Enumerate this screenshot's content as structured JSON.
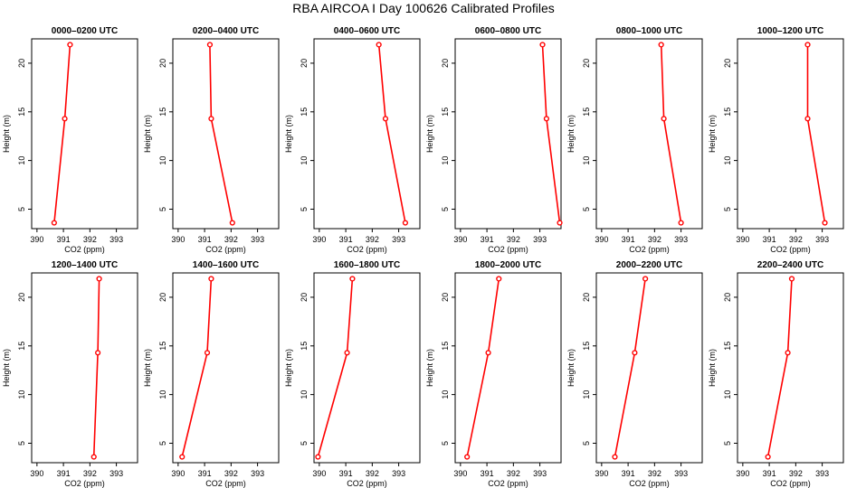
{
  "page": {
    "title": "RBA AIRCOA I  Day 100626  Calibrated Profiles"
  },
  "colors": {
    "series": "#ff0000",
    "axis": "#000000",
    "background": "#ffffff"
  },
  "chart_data": [
    {
      "type": "line",
      "title": "0000–0200 UTC",
      "xlabel": "CO2 (ppm)",
      "ylabel": "Height (m)",
      "xlim": [
        389.8,
        393.8
      ],
      "ylim": [
        3,
        22.5
      ],
      "xticks": [
        390,
        391,
        392,
        393
      ],
      "yticks": [
        5,
        10,
        15,
        20
      ],
      "points": [
        {
          "x": 391.25,
          "y": 21.9
        },
        {
          "x": 391.05,
          "y": 14.3
        },
        {
          "x": 390.65,
          "y": 3.6
        }
      ]
    },
    {
      "type": "line",
      "title": "0200–0400 UTC",
      "xlabel": "CO2 (ppm)",
      "ylabel": "Height (m)",
      "xlim": [
        389.8,
        393.8
      ],
      "ylim": [
        3,
        22.5
      ],
      "xticks": [
        390,
        391,
        392,
        393
      ],
      "yticks": [
        5,
        10,
        15,
        20
      ],
      "points": [
        {
          "x": 391.2,
          "y": 21.9
        },
        {
          "x": 391.25,
          "y": 14.3
        },
        {
          "x": 392.05,
          "y": 3.6
        }
      ]
    },
    {
      "type": "line",
      "title": "0400–0600 UTC",
      "xlabel": "CO2 (ppm)",
      "ylabel": "Height (m)",
      "xlim": [
        389.8,
        393.8
      ],
      "ylim": [
        3,
        22.5
      ],
      "xticks": [
        390,
        391,
        392,
        393
      ],
      "yticks": [
        5,
        10,
        15,
        20
      ],
      "points": [
        {
          "x": 392.25,
          "y": 21.9
        },
        {
          "x": 392.5,
          "y": 14.3
        },
        {
          "x": 393.25,
          "y": 3.6
        }
      ]
    },
    {
      "type": "line",
      "title": "0600–0800 UTC",
      "xlabel": "CO2 (ppm)",
      "ylabel": "Height (m)",
      "xlim": [
        389.8,
        393.8
      ],
      "ylim": [
        3,
        22.5
      ],
      "xticks": [
        390,
        391,
        392,
        393
      ],
      "yticks": [
        5,
        10,
        15,
        20
      ],
      "points": [
        {
          "x": 393.1,
          "y": 21.9
        },
        {
          "x": 393.25,
          "y": 14.3
        },
        {
          "x": 393.75,
          "y": 3.6
        }
      ]
    },
    {
      "type": "line",
      "title": "0800–1000 UTC",
      "xlabel": "CO2 (ppm)",
      "ylabel": "Height (m)",
      "xlim": [
        389.8,
        393.8
      ],
      "ylim": [
        3,
        22.5
      ],
      "xticks": [
        390,
        391,
        392,
        393
      ],
      "yticks": [
        5,
        10,
        15,
        20
      ],
      "points": [
        {
          "x": 392.25,
          "y": 21.9
        },
        {
          "x": 392.35,
          "y": 14.3
        },
        {
          "x": 393.0,
          "y": 3.6
        }
      ]
    },
    {
      "type": "line",
      "title": "1000–1200 UTC",
      "xlabel": "CO2 (ppm)",
      "ylabel": "Height (m)",
      "xlim": [
        389.8,
        393.8
      ],
      "ylim": [
        3,
        22.5
      ],
      "xticks": [
        390,
        391,
        392,
        393
      ],
      "yticks": [
        5,
        10,
        15,
        20
      ],
      "points": [
        {
          "x": 392.45,
          "y": 21.9
        },
        {
          "x": 392.45,
          "y": 14.3
        },
        {
          "x": 393.1,
          "y": 3.6
        }
      ]
    },
    {
      "type": "line",
      "title": "1200–1400 UTC",
      "xlabel": "CO2 (ppm)",
      "ylabel": "Height (m)",
      "xlim": [
        389.8,
        393.8
      ],
      "ylim": [
        3,
        22.5
      ],
      "xticks": [
        390,
        391,
        392,
        393
      ],
      "yticks": [
        5,
        10,
        15,
        20
      ],
      "points": [
        {
          "x": 392.35,
          "y": 21.9
        },
        {
          "x": 392.3,
          "y": 14.3
        },
        {
          "x": 392.15,
          "y": 3.6
        }
      ]
    },
    {
      "type": "line",
      "title": "1400–1600 UTC",
      "xlabel": "CO2 (ppm)",
      "ylabel": "Height (m)",
      "xlim": [
        389.8,
        393.8
      ],
      "ylim": [
        3,
        22.5
      ],
      "xticks": [
        390,
        391,
        392,
        393
      ],
      "yticks": [
        5,
        10,
        15,
        20
      ],
      "points": [
        {
          "x": 391.25,
          "y": 21.9
        },
        {
          "x": 391.1,
          "y": 14.3
        },
        {
          "x": 390.15,
          "y": 3.6
        }
      ]
    },
    {
      "type": "line",
      "title": "1600–1800 UTC",
      "xlabel": "CO2 (ppm)",
      "ylabel": "Height (m)",
      "xlim": [
        389.8,
        393.8
      ],
      "ylim": [
        3,
        22.5
      ],
      "xticks": [
        390,
        391,
        392,
        393
      ],
      "yticks": [
        5,
        10,
        15,
        20
      ],
      "points": [
        {
          "x": 391.25,
          "y": 21.9
        },
        {
          "x": 391.05,
          "y": 14.3
        },
        {
          "x": 389.95,
          "y": 3.6
        }
      ]
    },
    {
      "type": "line",
      "title": "1800–2000 UTC",
      "xlabel": "CO2 (ppm)",
      "ylabel": "Height (m)",
      "xlim": [
        389.8,
        393.8
      ],
      "ylim": [
        3,
        22.5
      ],
      "xticks": [
        390,
        391,
        392,
        393
      ],
      "yticks": [
        5,
        10,
        15,
        20
      ],
      "points": [
        {
          "x": 391.45,
          "y": 21.9
        },
        {
          "x": 391.05,
          "y": 14.3
        },
        {
          "x": 390.25,
          "y": 3.6
        }
      ]
    },
    {
      "type": "line",
      "title": "2000–2200 UTC",
      "xlabel": "CO2 (ppm)",
      "ylabel": "Height (m)",
      "xlim": [
        389.8,
        393.8
      ],
      "ylim": [
        3,
        22.5
      ],
      "xticks": [
        390,
        391,
        392,
        393
      ],
      "yticks": [
        5,
        10,
        15,
        20
      ],
      "points": [
        {
          "x": 391.65,
          "y": 21.9
        },
        {
          "x": 391.25,
          "y": 14.3
        },
        {
          "x": 390.5,
          "y": 3.6
        }
      ]
    },
    {
      "type": "line",
      "title": "2200–2400 UTC",
      "xlabel": "CO2 (ppm)",
      "ylabel": "Height (m)",
      "xlim": [
        389.8,
        393.8
      ],
      "ylim": [
        3,
        22.5
      ],
      "xticks": [
        390,
        391,
        392,
        393
      ],
      "yticks": [
        5,
        10,
        15,
        20
      ],
      "points": [
        {
          "x": 391.85,
          "y": 21.9
        },
        {
          "x": 391.7,
          "y": 14.3
        },
        {
          "x": 390.95,
          "y": 3.6
        }
      ]
    }
  ]
}
